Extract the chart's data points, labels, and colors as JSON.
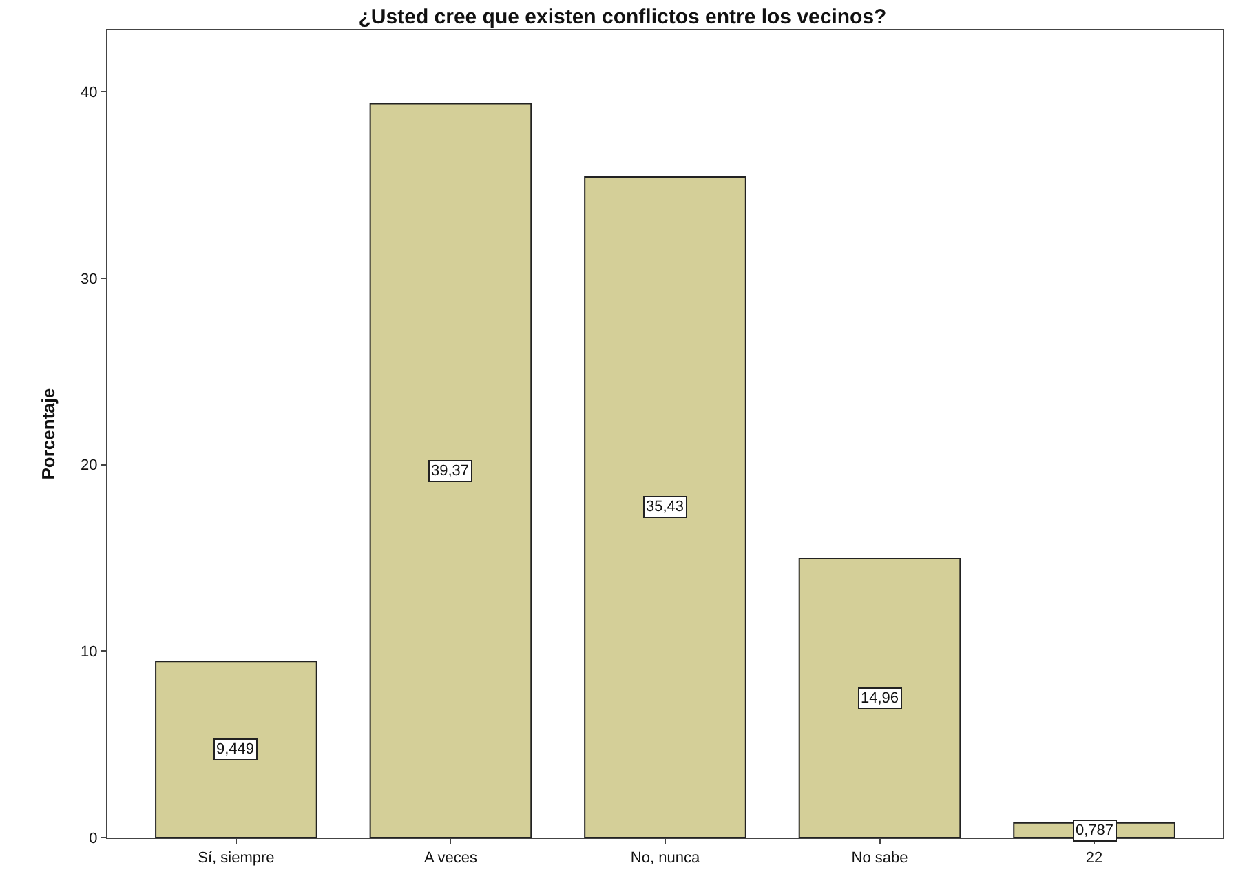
{
  "chart_data": {
    "type": "bar",
    "title": "¿Usted cree que existen conflictos entre los vecinos?",
    "ylabel": "Porcentaje",
    "categories": [
      "Sí, siempre",
      "A veces",
      "No, nunca",
      "No sabe",
      "22"
    ],
    "values": [
      9.449,
      39.37,
      35.43,
      14.96,
      0.787
    ],
    "value_labels": [
      "9,449",
      "39,37",
      "35,43",
      "14,96",
      "0,787"
    ],
    "color": "#d4cf98",
    "ylim": [
      0,
      43.3
    ],
    "yticks": [
      0,
      10,
      20,
      30,
      40
    ]
  }
}
